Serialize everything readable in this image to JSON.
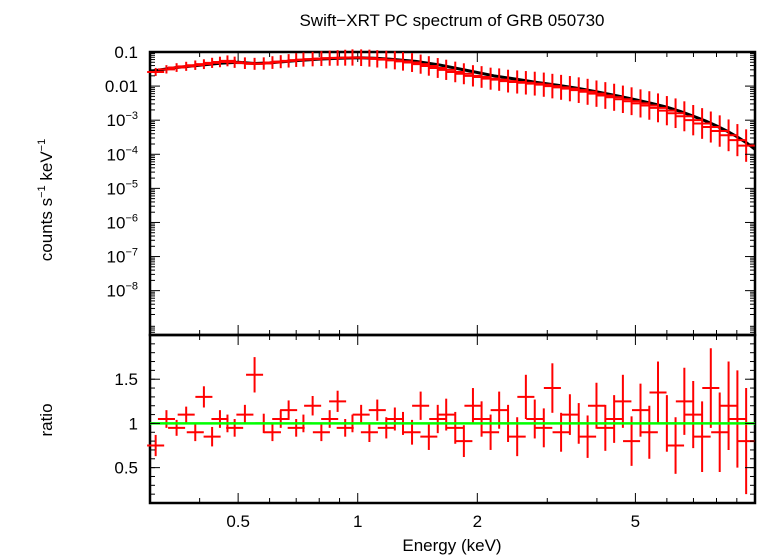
{
  "chart_data": [
    {
      "panel": "spectrum",
      "type": "scatter",
      "title": "Swift−XRT PC spectrum of GRB 050730",
      "xlabel": "",
      "ylabel_main": "counts s",
      "ylabel_exp1": "−1",
      "ylabel_mid": " keV",
      "ylabel_exp2": "−1",
      "x_scale": "log",
      "y_scale": "log",
      "xlim": [
        0.3,
        10
      ],
      "ylim": [
        5e-10,
        0.1
      ],
      "y_ticks": [
        {
          "value": 0.1,
          "label": "0.1"
        },
        {
          "value": 0.01,
          "label": "0.01"
        },
        {
          "value": 0.001,
          "base": "10",
          "exp": "−3"
        },
        {
          "value": 0.0001,
          "base": "10",
          "exp": "−4"
        },
        {
          "value": 1e-05,
          "base": "10",
          "exp": "−5"
        },
        {
          "value": 1e-06,
          "base": "10",
          "exp": "−6"
        },
        {
          "value": 1e-07,
          "base": "10",
          "exp": "−7"
        },
        {
          "value": 1e-08,
          "base": "10",
          "exp": "−8"
        }
      ],
      "series": [
        {
          "role": "data",
          "color": "#ff0000",
          "x": [
            0.31,
            0.33,
            0.35,
            0.37,
            0.39,
            0.41,
            0.43,
            0.45,
            0.47,
            0.49,
            0.52,
            0.55,
            0.58,
            0.61,
            0.64,
            0.67,
            0.7,
            0.73,
            0.77,
            0.81,
            0.85,
            0.89,
            0.93,
            0.97,
            1.02,
            1.07,
            1.12,
            1.18,
            1.24,
            1.3,
            1.37,
            1.44,
            1.51,
            1.59,
            1.67,
            1.76,
            1.85,
            1.95,
            2.05,
            2.16,
            2.27,
            2.39,
            2.52,
            2.65,
            2.79,
            2.94,
            3.09,
            3.25,
            3.42,
            3.6,
            3.79,
            3.99,
            4.2,
            4.42,
            4.65,
            4.89,
            5.15,
            5.42,
            5.7,
            6.0,
            6.31,
            6.64,
            6.99,
            7.36,
            7.74,
            8.15,
            8.58,
            9.03,
            9.5
          ],
          "y": [
            0.026,
            0.031,
            0.035,
            0.038,
            0.041,
            0.044,
            0.048,
            0.051,
            0.055,
            0.05,
            0.047,
            0.045,
            0.046,
            0.049,
            0.052,
            0.055,
            0.058,
            0.06,
            0.062,
            0.064,
            0.066,
            0.067,
            0.068,
            0.069,
            0.068,
            0.066,
            0.063,
            0.06,
            0.057,
            0.053,
            0.049,
            0.044,
            0.039,
            0.034,
            0.03,
            0.026,
            0.023,
            0.02,
            0.0185,
            0.0165,
            0.0155,
            0.014,
            0.0132,
            0.0125,
            0.0118,
            0.011,
            0.01,
            0.0092,
            0.0084,
            0.0076,
            0.0068,
            0.006,
            0.0053,
            0.0047,
            0.0041,
            0.0036,
            0.0031,
            0.0027,
            0.0023,
            0.0019,
            0.0016,
            0.0013,
            0.001,
            0.0008,
            0.00063,
            0.00048,
            0.00036,
            0.00026,
            0.00018
          ]
        },
        {
          "role": "model",
          "color": "#000000",
          "x": [
            0.3,
            0.35,
            0.4,
            0.45,
            0.5,
            0.55,
            0.6,
            0.7,
            0.8,
            0.9,
            1.0,
            1.1,
            1.2,
            1.4,
            1.6,
            1.8,
            2.0,
            2.2,
            2.5,
            2.8,
            3.2,
            3.6,
            4.0,
            4.5,
            5.0,
            5.5,
            6.0,
            6.5,
            7.0,
            7.5,
            8.0,
            8.5,
            9.0,
            9.5,
            10.0
          ],
          "y": [
            0.027,
            0.035,
            0.041,
            0.047,
            0.05,
            0.046,
            0.048,
            0.056,
            0.062,
            0.066,
            0.068,
            0.066,
            0.062,
            0.053,
            0.042,
            0.032,
            0.025,
            0.02,
            0.016,
            0.013,
            0.0105,
            0.0085,
            0.0068,
            0.0052,
            0.004,
            0.0031,
            0.0024,
            0.0018,
            0.0013,
            0.00095,
            0.00068,
            0.00048,
            0.00033,
            0.00022,
            0.00014
          ]
        }
      ]
    },
    {
      "panel": "ratio",
      "type": "scatter",
      "xlabel": "Energy (keV)",
      "ylabel": "ratio",
      "x_scale": "log",
      "y_scale": "linear",
      "xlim": [
        0.3,
        10
      ],
      "ylim": [
        0.1,
        2.0
      ],
      "x_ticks": [
        {
          "value": 0.5,
          "label": "0.5"
        },
        {
          "value": 1,
          "label": "1"
        },
        {
          "value": 2,
          "label": "2"
        },
        {
          "value": 5,
          "label": "5"
        }
      ],
      "y_ticks": [
        {
          "value": 0.5,
          "label": "0.5"
        },
        {
          "value": 1,
          "label": "1"
        },
        {
          "value": 1.5,
          "label": "1.5"
        }
      ],
      "reference_line": {
        "y": 1,
        "color": "#00ff00"
      },
      "series": [
        {
          "role": "data",
          "color": "#ff0000",
          "x": [
            0.31,
            0.33,
            0.35,
            0.37,
            0.39,
            0.41,
            0.43,
            0.45,
            0.47,
            0.49,
            0.52,
            0.55,
            0.58,
            0.61,
            0.64,
            0.67,
            0.7,
            0.73,
            0.77,
            0.81,
            0.85,
            0.89,
            0.93,
            0.97,
            1.02,
            1.07,
            1.12,
            1.18,
            1.24,
            1.3,
            1.37,
            1.44,
            1.51,
            1.59,
            1.67,
            1.76,
            1.85,
            1.95,
            2.05,
            2.16,
            2.27,
            2.39,
            2.52,
            2.65,
            2.79,
            2.94,
            3.09,
            3.25,
            3.42,
            3.6,
            3.79,
            3.99,
            4.2,
            4.42,
            4.65,
            4.89,
            5.15,
            5.42,
            5.7,
            6.0,
            6.31,
            6.64,
            6.99,
            7.36,
            7.74,
            8.15,
            8.58,
            9.03,
            9.5
          ],
          "y": [
            0.75,
            1.05,
            0.95,
            1.1,
            0.9,
            1.3,
            0.85,
            1.05,
            1.0,
            0.95,
            1.1,
            1.55,
            1.0,
            0.9,
            1.05,
            1.15,
            0.95,
            1.0,
            1.2,
            0.9,
            1.05,
            1.25,
            0.95,
            1.0,
            1.1,
            0.9,
            1.15,
            0.95,
            1.05,
            1.0,
            0.9,
            1.2,
            0.85,
            1.05,
            1.1,
            0.95,
            0.8,
            1.2,
            1.05,
            0.9,
            1.15,
            1.0,
            0.85,
            1.3,
            1.05,
            0.95,
            1.4,
            0.9,
            1.1,
            1.0,
            0.85,
            1.2,
            0.95,
            1.05,
            1.25,
            0.8,
            1.15,
            0.9,
            1.35,
            1.0,
            0.75,
            1.25,
            1.1,
            0.85,
            1.4,
            0.9,
            1.2,
            1.05,
            0.8
          ],
          "err": [
            0.12,
            0.1,
            0.09,
            0.09,
            0.1,
            0.12,
            0.11,
            0.1,
            0.1,
            0.1,
            0.11,
            0.2,
            0.11,
            0.1,
            0.1,
            0.11,
            0.1,
            0.1,
            0.11,
            0.1,
            0.1,
            0.12,
            0.1,
            0.1,
            0.11,
            0.11,
            0.12,
            0.12,
            0.13,
            0.13,
            0.14,
            0.16,
            0.15,
            0.16,
            0.18,
            0.18,
            0.18,
            0.2,
            0.2,
            0.2,
            0.21,
            0.21,
            0.22,
            0.25,
            0.22,
            0.22,
            0.28,
            0.22,
            0.23,
            0.23,
            0.24,
            0.26,
            0.26,
            0.27,
            0.3,
            0.28,
            0.3,
            0.3,
            0.35,
            0.32,
            0.32,
            0.38,
            0.38,
            0.4,
            0.45,
            0.45,
            0.5,
            0.55,
            0.6
          ]
        }
      ]
    }
  ]
}
